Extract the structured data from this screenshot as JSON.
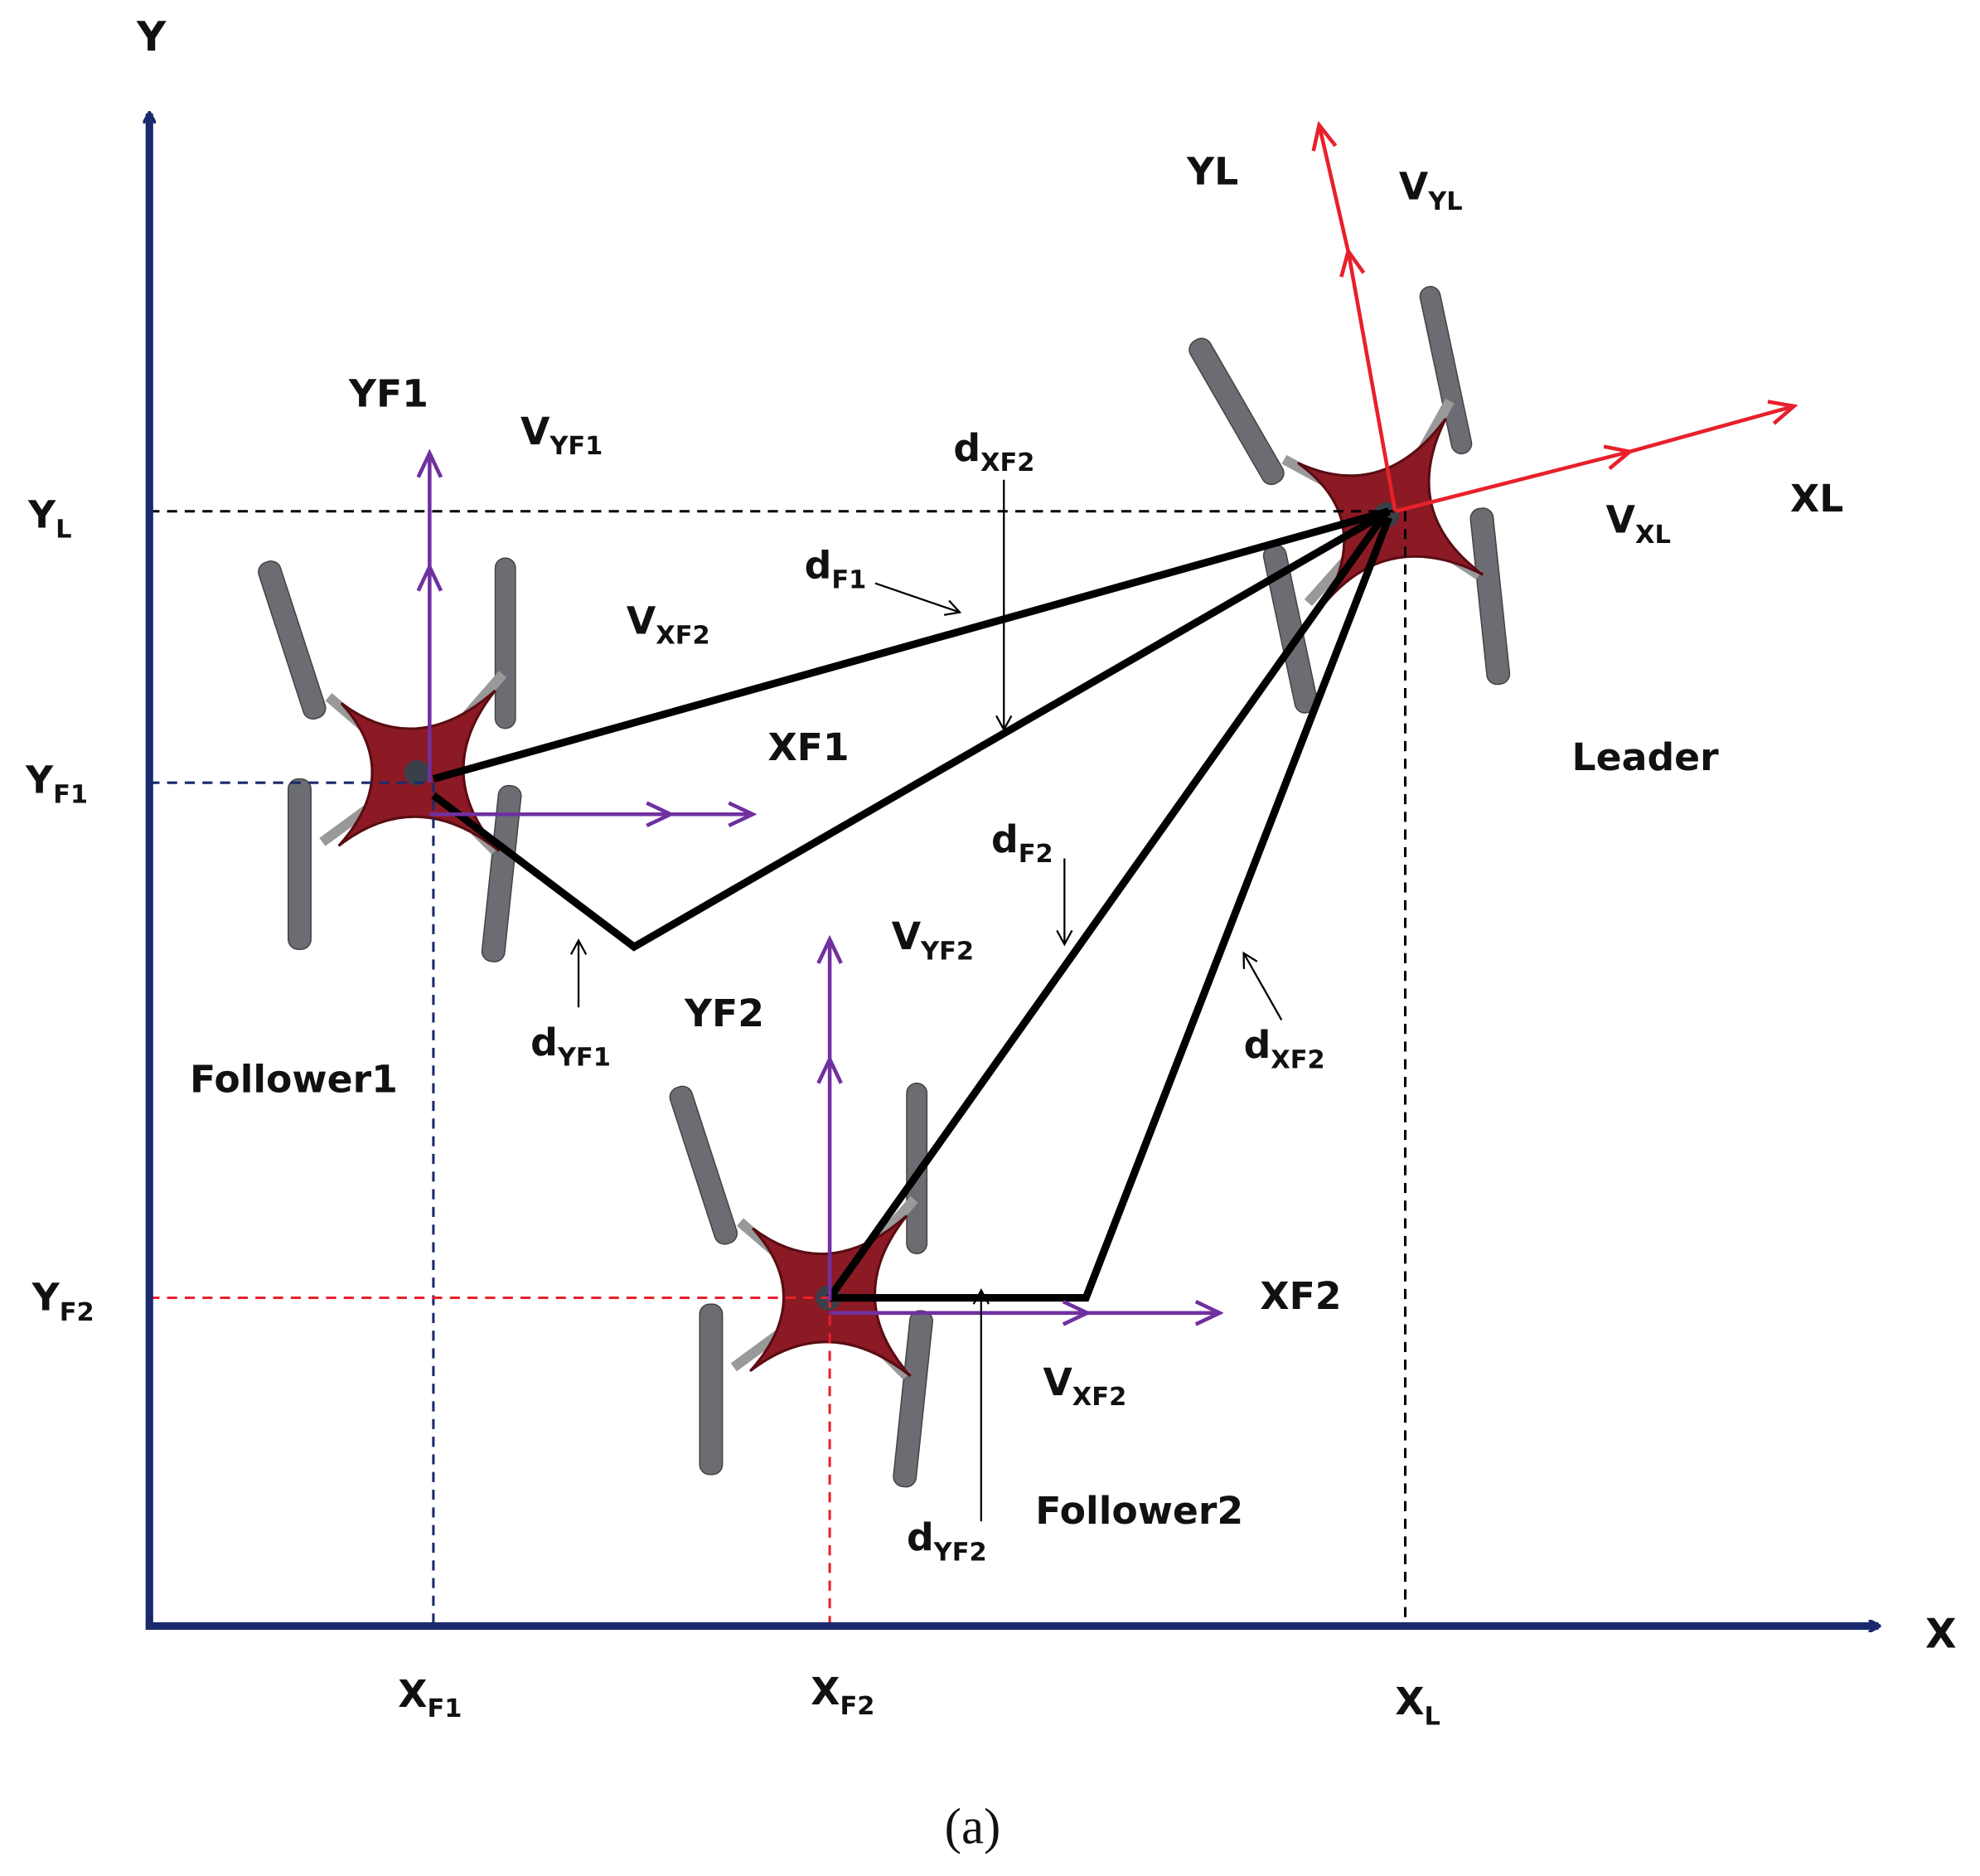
{
  "axes": {
    "y": "Y",
    "x": "X"
  },
  "axis_labels": [
    {
      "main": "Y",
      "sub": "L"
    },
    {
      "main": "Y",
      "sub": "F1"
    },
    {
      "main": "Y",
      "sub": "F2"
    },
    {
      "main": "X",
      "sub": "F1"
    },
    {
      "main": "X",
      "sub": "F2"
    },
    {
      "main": "X",
      "sub": "L"
    }
  ],
  "labels": [
    {
      "main": "YF1"
    },
    {
      "main": "V",
      "sub": "YF1"
    },
    {
      "main": "V",
      "sub": "XF2"
    },
    {
      "main": "d",
      "sub": "XF2"
    },
    {
      "main": "d",
      "sub": "F1"
    },
    {
      "main": "XF1"
    },
    {
      "main": "YL"
    },
    {
      "main": "V",
      "sub": "YL"
    },
    {
      "main": "XL"
    },
    {
      "main": "V",
      "sub": "XL"
    },
    {
      "main": "Leader"
    },
    {
      "main": "d",
      "sub": "F2"
    },
    {
      "main": "V",
      "sub": "YF2"
    },
    {
      "main": "YF2"
    },
    {
      "main": "d",
      "sub": "YF1"
    },
    {
      "main": "Follower1"
    },
    {
      "main": "d",
      "sub": "XF2"
    },
    {
      "main": "XF2"
    },
    {
      "main": "V",
      "sub": "XF2"
    },
    {
      "main": "Follower2"
    },
    {
      "main": "d",
      "sub": "YF2"
    }
  ],
  "caption": "(a)"
}
